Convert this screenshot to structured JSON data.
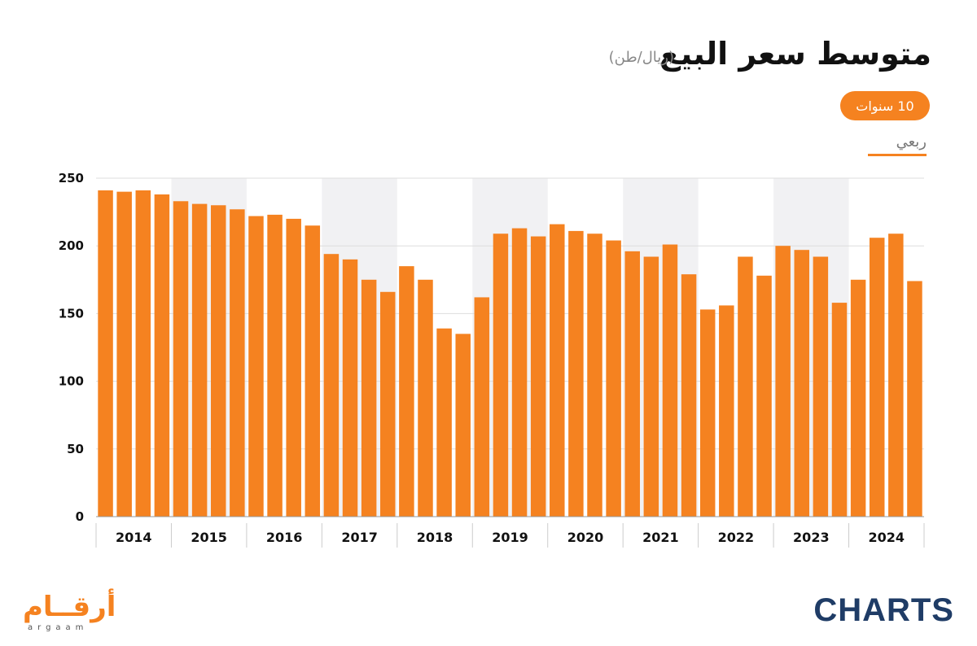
{
  "header": {
    "title": "متوسط سعر البيع",
    "unit": "(ريال/طن)"
  },
  "controls": {
    "range_label": "10 سنوات",
    "frequency_label": "ربعي"
  },
  "branding": {
    "argaam_logo": "أرقــام",
    "argaam_sub": "argaam",
    "charts_logo": "CHARTS"
  },
  "colors": {
    "bar": "#f58220",
    "band": "#f1f1f3",
    "grid": "#dddddd",
    "axis_text": "#111111"
  },
  "chart_data": {
    "type": "bar",
    "title": "متوسط سعر البيع",
    "ylabel": "(ريال/طن)",
    "xlabel": "",
    "ylim": [
      0,
      250
    ],
    "yticks": [
      0,
      50,
      100,
      150,
      200,
      250
    ],
    "grid": true,
    "years": [
      "2014",
      "2015",
      "2016",
      "2017",
      "2018",
      "2019",
      "2020",
      "2021",
      "2022",
      "2023",
      "2024"
    ],
    "series": [
      {
        "values": [
          241,
          240,
          241,
          238,
          233,
          231,
          230,
          227,
          222,
          223,
          220,
          215,
          194,
          190,
          175,
          166,
          185,
          175,
          139,
          135,
          162,
          209,
          213,
          207,
          216,
          211,
          209,
          204,
          196,
          192,
          201,
          179,
          153,
          156,
          192,
          178,
          200,
          197,
          192,
          158,
          175,
          206,
          209,
          174
        ]
      }
    ]
  }
}
